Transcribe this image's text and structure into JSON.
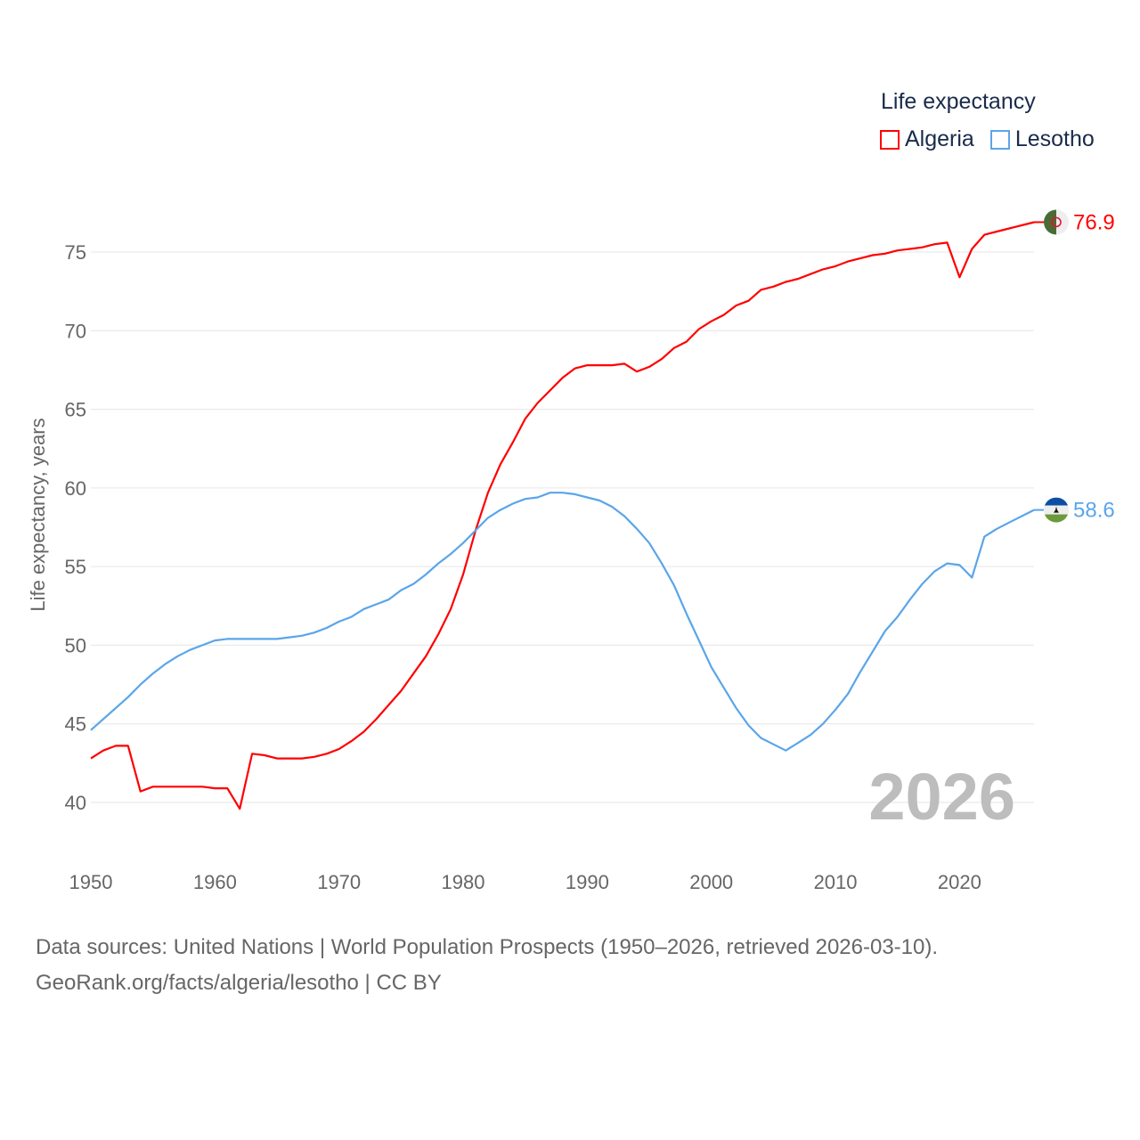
{
  "legend": {
    "title": "Life expectancy",
    "items": [
      {
        "label": "Algeria",
        "color": "#ff0000"
      },
      {
        "label": "Lesotho",
        "color": "#5aa5ea"
      }
    ]
  },
  "year_watermark": "2026",
  "source": {
    "line1": "Data sources: United Nations | World Population Prospects (1950–2026, retrieved 2026-03-10).",
    "line2": "GeoRank.org/facts/algeria/lesotho | CC BY"
  },
  "chart_data": {
    "type": "line",
    "title": "Life expectancy",
    "xlabel": "",
    "ylabel": "Life expectancy, years",
    "xlim": [
      1950,
      2026
    ],
    "ylim": [
      40,
      75
    ],
    "xticks": [
      1950,
      1960,
      1970,
      1980,
      1990,
      2000,
      2010,
      2020
    ],
    "yticks": [
      40,
      45,
      50,
      55,
      60,
      65,
      70,
      75
    ],
    "grid": true,
    "legend_position": "top-right",
    "x_start": 1950,
    "series": [
      {
        "name": "Algeria",
        "color": "#ff0000",
        "end_label": "76.9",
        "values": [
          42.8,
          43.3,
          43.6,
          43.6,
          40.7,
          41.0,
          41.0,
          41.0,
          41.0,
          41.0,
          40.9,
          40.9,
          39.6,
          43.1,
          43.0,
          42.8,
          42.8,
          42.8,
          42.9,
          43.1,
          43.4,
          43.9,
          44.5,
          45.3,
          46.2,
          47.1,
          48.2,
          49.3,
          50.7,
          52.3,
          54.5,
          57.3,
          59.7,
          61.5,
          62.9,
          64.4,
          65.4,
          66.2,
          67.0,
          67.6,
          67.8,
          67.8,
          67.8,
          67.9,
          67.4,
          67.7,
          68.2,
          68.9,
          69.3,
          70.1,
          70.6,
          71.0,
          71.6,
          71.9,
          72.6,
          72.8,
          73.1,
          73.3,
          73.6,
          73.9,
          74.1,
          74.4,
          74.6,
          74.8,
          74.9,
          75.1,
          75.2,
          75.3,
          75.5,
          75.6,
          73.4,
          75.2,
          76.1,
          76.3,
          76.5,
          76.7,
          76.9
        ]
      },
      {
        "name": "Lesotho",
        "color": "#5aa5ea",
        "end_label": "58.6",
        "values": [
          44.6,
          45.3,
          46.0,
          46.7,
          47.5,
          48.2,
          48.8,
          49.3,
          49.7,
          50.0,
          50.3,
          50.4,
          50.4,
          50.4,
          50.4,
          50.4,
          50.5,
          50.6,
          50.8,
          51.1,
          51.5,
          51.8,
          52.3,
          52.6,
          52.9,
          53.5,
          53.9,
          54.5,
          55.2,
          55.8,
          56.5,
          57.3,
          58.1,
          58.6,
          59.0,
          59.3,
          59.4,
          59.7,
          59.7,
          59.6,
          59.4,
          59.2,
          58.8,
          58.2,
          57.4,
          56.5,
          55.2,
          53.8,
          52.0,
          50.3,
          48.6,
          47.3,
          46.0,
          44.9,
          44.1,
          43.7,
          43.3,
          43.8,
          44.3,
          45.0,
          45.9,
          46.9,
          48.3,
          49.6,
          50.9,
          51.8,
          52.9,
          53.9,
          54.7,
          55.2,
          55.1,
          54.3,
          56.9,
          57.4,
          57.8,
          58.2,
          58.6
        ]
      }
    ]
  }
}
